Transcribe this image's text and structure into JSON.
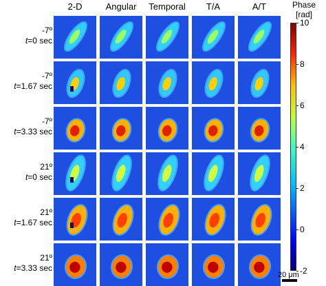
{
  "columns": [
    "2-D",
    "Angular",
    "Temporal",
    "T/A",
    "A/T"
  ],
  "rows": [
    {
      "angle": "-7º",
      "time_prefix": "t",
      "time": "=0 sec"
    },
    {
      "angle": "-7º",
      "time_prefix": "t",
      "time": "=1.67 sec"
    },
    {
      "angle": "-7º",
      "time_prefix": "t",
      "time": "=3.33 sec"
    },
    {
      "angle": "21º",
      "time_prefix": "t",
      "time": "=0 sec"
    },
    {
      "angle": "21º",
      "time_prefix": "t",
      "time": "=1.67 sec"
    },
    {
      "angle": "21º",
      "time_prefix": "t",
      "time": "=3.33 sec"
    }
  ],
  "colorbar": {
    "title_line1": "Phase",
    "title_line2": "[rad]",
    "ticks": [
      "10",
      "8",
      "6",
      "4",
      "2",
      "0",
      "-2"
    ],
    "colormap": "jet",
    "range": [
      -2,
      10
    ]
  },
  "scalebar": {
    "label": "20 μm"
  },
  "colors": {
    "background_blue": "#1f4fe0"
  }
}
